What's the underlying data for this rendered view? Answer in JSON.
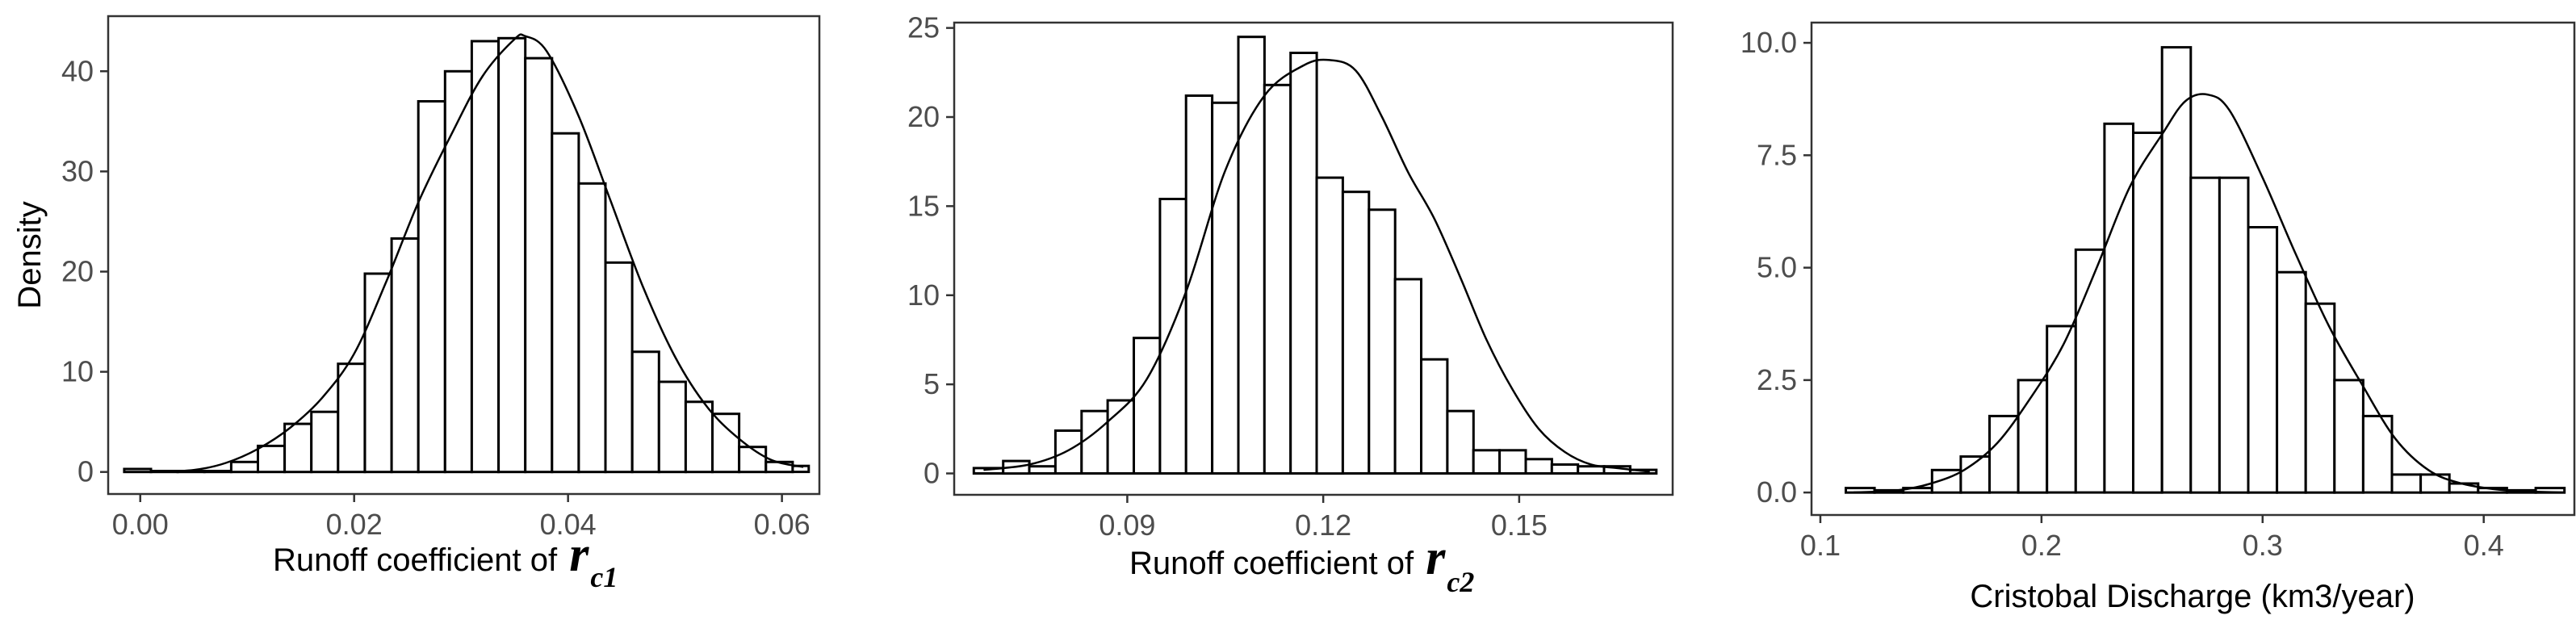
{
  "chart_data": [
    {
      "type": "bar",
      "ylabel": "Density",
      "xlabel_text": "Runoff coefficient of ",
      "xlabel_symbol": "r",
      "xlabel_subscript": "c1",
      "xlim": [
        -0.003,
        0.0635
      ],
      "ylim": [
        -2.2,
        45.5
      ],
      "x_ticks": [
        0.0,
        0.02,
        0.04,
        0.06
      ],
      "x_tick_labels": [
        "0.00",
        "0.02",
        "0.04",
        "0.06"
      ],
      "y_ticks": [
        0,
        10,
        20,
        30,
        40
      ],
      "y_tick_labels": [
        "0",
        "10",
        "20",
        "30",
        "40"
      ],
      "bin_edges": [
        -0.0015,
        0.001,
        0.0035,
        0.006,
        0.0085,
        0.011,
        0.0135,
        0.016,
        0.0185,
        0.021,
        0.0235,
        0.026,
        0.0285,
        0.031,
        0.0335,
        0.036,
        0.0385,
        0.041,
        0.0435,
        0.046,
        0.0485,
        0.051,
        0.0535,
        0.056,
        0.0585,
        0.061,
        0.0625
      ],
      "values": [
        0.3,
        0.1,
        0.1,
        0.1,
        1.0,
        2.6,
        4.8,
        6.0,
        10.8,
        19.8,
        23.3,
        37.0,
        40.0,
        43.0,
        43.3,
        41.3,
        33.8,
        28.8,
        20.9,
        12.0,
        9.0,
        7.0,
        5.8,
        2.5,
        1.0,
        0.6
      ],
      "density_x": [
        0.001,
        0.005,
        0.008,
        0.011,
        0.014,
        0.017,
        0.02,
        0.023,
        0.026,
        0.029,
        0.032,
        0.035,
        0.036,
        0.038,
        0.041,
        0.044,
        0.047,
        0.05,
        0.053,
        0.056,
        0.059,
        0.062
      ],
      "density_y": [
        0.0,
        0.2,
        0.9,
        2.3,
        4.4,
        7.4,
        11.8,
        19.0,
        26.9,
        33.5,
        39.5,
        43.2,
        43.5,
        42.0,
        35.5,
        27.0,
        18.5,
        11.5,
        6.5,
        3.3,
        1.2,
        0.5
      ]
    },
    {
      "type": "bar",
      "ylabel": "",
      "xlabel_text": "Runoff coefficient of ",
      "xlabel_symbol": "r",
      "xlabel_subscript": "c2",
      "xlim": [
        0.0635,
        0.1735
      ],
      "ylim": [
        -1.2,
        25.3
      ],
      "x_ticks": [
        0.09,
        0.12,
        0.15
      ],
      "x_tick_labels": [
        "0.09",
        "0.12",
        "0.15"
      ],
      "y_ticks": [
        0,
        5,
        10,
        15,
        20,
        25
      ],
      "y_tick_labels": [
        "0",
        "5",
        "10",
        "15",
        "20",
        "25"
      ],
      "bin_edges": [
        0.0665,
        0.071,
        0.075,
        0.079,
        0.083,
        0.087,
        0.091,
        0.095,
        0.099,
        0.103,
        0.107,
        0.111,
        0.115,
        0.119,
        0.123,
        0.127,
        0.131,
        0.135,
        0.139,
        0.143,
        0.147,
        0.151,
        0.155,
        0.159,
        0.163,
        0.167,
        0.171
      ],
      "values": [
        0.3,
        0.7,
        0.4,
        2.4,
        3.5,
        4.1,
        7.6,
        15.4,
        21.2,
        20.8,
        24.5,
        21.8,
        23.6,
        16.6,
        15.8,
        14.8,
        10.9,
        6.4,
        3.5,
        1.3,
        1.3,
        0.8,
        0.5,
        0.4,
        0.4,
        0.2
      ],
      "density_x": [
        0.068,
        0.075,
        0.081,
        0.087,
        0.093,
        0.099,
        0.105,
        0.111,
        0.117,
        0.121,
        0.125,
        0.129,
        0.133,
        0.137,
        0.141,
        0.145,
        0.149,
        0.153,
        0.157,
        0.161,
        0.165,
        0.17
      ],
      "density_y": [
        0.2,
        0.5,
        1.3,
        2.9,
        5.3,
        10.2,
        17.0,
        21.2,
        22.9,
        23.2,
        22.6,
        20.0,
        16.9,
        14.3,
        11.0,
        7.5,
        4.7,
        2.5,
        1.2,
        0.5,
        0.3,
        0.1
      ]
    },
    {
      "type": "bar",
      "ylabel": "",
      "xlabel_text": "Cristobal Discharge (km3/year)",
      "xlabel_symbol": "",
      "xlabel_subscript": "",
      "xlim": [
        0.096,
        0.441
      ],
      "ylim": [
        -0.5,
        10.45
      ],
      "x_ticks": [
        0.1,
        0.2,
        0.3,
        0.4
      ],
      "x_tick_labels": [
        "0.1",
        "0.2",
        "0.3",
        "0.4"
      ],
      "y_ticks": [
        0.0,
        2.5,
        5.0,
        7.5,
        10.0
      ],
      "y_tick_labels": [
        "0.0",
        "2.5",
        "5.0",
        "7.5",
        "10.0"
      ],
      "bin_edges": [
        0.1115,
        0.1245,
        0.1375,
        0.1505,
        0.1635,
        0.1765,
        0.1895,
        0.2025,
        0.2155,
        0.2285,
        0.2415,
        0.2545,
        0.2675,
        0.2805,
        0.2935,
        0.3065,
        0.3195,
        0.3325,
        0.3455,
        0.3585,
        0.3715,
        0.3845,
        0.3975,
        0.4105,
        0.4235,
        0.4365
      ],
      "values": [
        0.1,
        0.05,
        0.1,
        0.5,
        0.8,
        1.7,
        2.5,
        3.7,
        5.4,
        8.2,
        8.0,
        9.9,
        7.0,
        7.0,
        5.9,
        4.9,
        4.2,
        2.5,
        1.7,
        0.4,
        0.4,
        0.2,
        0.1,
        0.05,
        0.1
      ],
      "density_x": [
        0.115,
        0.135,
        0.15,
        0.165,
        0.18,
        0.195,
        0.21,
        0.225,
        0.24,
        0.255,
        0.265,
        0.275,
        0.285,
        0.3,
        0.315,
        0.33,
        0.345,
        0.36,
        0.375,
        0.39,
        0.41,
        0.435
      ],
      "density_y": [
        0.0,
        0.05,
        0.2,
        0.5,
        1.1,
        2.1,
        3.3,
        5.0,
        6.8,
        8.0,
        8.7,
        8.85,
        8.5,
        7.0,
        5.3,
        3.7,
        2.4,
        1.2,
        0.5,
        0.2,
        0.05,
        0.0
      ]
    }
  ]
}
